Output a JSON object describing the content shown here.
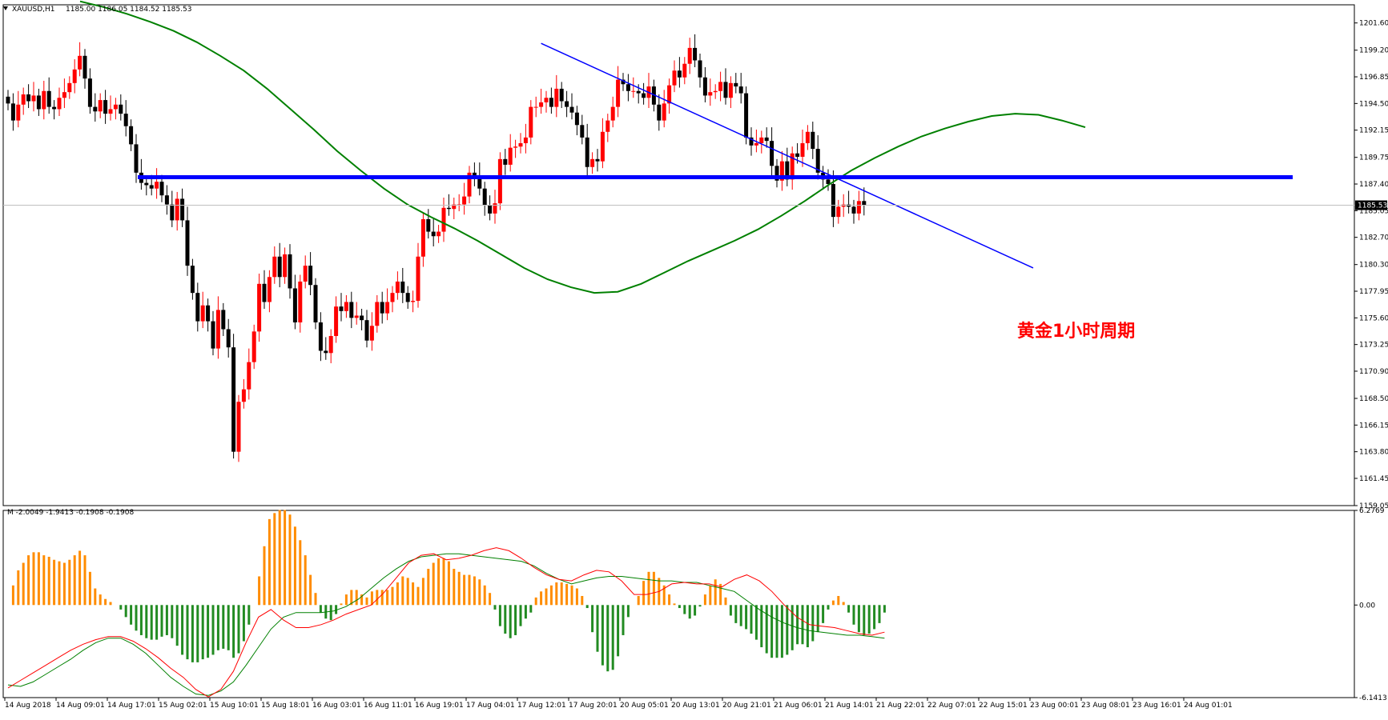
{
  "header": {
    "symbol": "XAUUSD,H1",
    "ohlc": "1185.00 1186.05 1184.52 1185.53"
  },
  "annotation": "黄金1小时周期",
  "colors": {
    "bull": "#ff0000",
    "bear": "#000000",
    "ma": "#008000",
    "support_line": "#0000ff",
    "trend_line": "#0000ff",
    "hist_pos": "#ff8c00",
    "hist_neg": "#228b22",
    "osc_fast": "#ff0000",
    "osc_slow": "#008000",
    "grid": "#c0c0c0"
  },
  "chart_data": [
    {
      "type": "candlestick",
      "title": "XAUUSD,H1",
      "ylim": [
        1159.05,
        1203.2
      ],
      "price_ticks": [
        "1201.60",
        "1199.20",
        "1196.85",
        "1194.50",
        "1192.15",
        "1189.75",
        "1187.40",
        "1185.05",
        "1182.70",
        "1180.30",
        "1177.95",
        "1175.60",
        "1173.25",
        "1170.90",
        "1168.50",
        "1166.15",
        "1163.80",
        "1161.45",
        "1159.05"
      ],
      "current_price": "1185.53",
      "x_labels": [
        "14 Aug 2018",
        "14 Aug 09:01",
        "14 Aug 17:01",
        "15 Aug 02:01",
        "15 Aug 10:01",
        "15 Aug 18:01",
        "16 Aug 03:01",
        "16 Aug 11:01",
        "16 Aug 19:01",
        "17 Aug 04:01",
        "17 Aug 12:01",
        "17 Aug 20:01",
        "20 Aug 05:01",
        "20 Aug 13:01",
        "20 Aug 21:01",
        "21 Aug 06:01",
        "21 Aug 14:01",
        "21 Aug 22:01",
        "22 Aug 07:01",
        "22 Aug 15:01",
        "23 Aug 00:01",
        "23 Aug 08:01",
        "23 Aug 16:01",
        "24 Aug 01:01"
      ],
      "close": [
        1194.5,
        1193.0,
        1194.4,
        1195.3,
        1194.7,
        1195.2,
        1194.0,
        1195.6,
        1194.2,
        1194.0,
        1195.0,
        1195.5,
        1196.3,
        1197.5,
        1198.7,
        1196.7,
        1194.2,
        1193.8,
        1194.8,
        1193.6,
        1194.0,
        1194.4,
        1193.6,
        1192.5,
        1190.9,
        1188.4,
        1187.5,
        1187.3,
        1187.0,
        1187.6,
        1186.4,
        1185.6,
        1184.2,
        1186.1,
        1184.2,
        1180.2,
        1177.8,
        1175.3,
        1176.7,
        1175.3,
        1172.9,
        1176.3,
        1174.6,
        1173.0,
        1163.8,
        1168.2,
        1169.3,
        1171.7,
        1174.4,
        1178.6,
        1177.0,
        1179.2,
        1181.0,
        1179.2,
        1181.2,
        1178.2,
        1175.2,
        1178.8,
        1180.2,
        1178.5,
        1175.2,
        1172.7,
        1172.5,
        1174.0,
        1176.6,
        1176.2,
        1177.0,
        1175.6,
        1175.8,
        1175.4,
        1173.6,
        1174.9,
        1177.0,
        1176.0,
        1177.0,
        1177.8,
        1178.8,
        1177.8,
        1177.0,
        1177.1,
        1181.0,
        1184.3,
        1183.2,
        1182.8,
        1183.2,
        1185.3,
        1185.2,
        1185.6,
        1185.6,
        1186.3,
        1188.4,
        1188.1,
        1187.0,
        1185.5,
        1184.8,
        1185.7,
        1189.6,
        1189.1,
        1190.6,
        1190.7,
        1191.0,
        1191.5,
        1194.2,
        1194.2,
        1194.6,
        1195.0,
        1194.2,
        1195.8,
        1194.7,
        1194.2,
        1193.7,
        1192.6,
        1191.5,
        1188.9,
        1189.6,
        1189.4,
        1192.0,
        1193.0,
        1194.2,
        1196.6,
        1196.2,
        1195.6,
        1195.6,
        1195.4,
        1195.0,
        1196.0,
        1194.4,
        1193.0,
        1194.5,
        1196.1,
        1197.4,
        1196.8,
        1198.0,
        1199.4,
        1198.3,
        1196.8,
        1195.2,
        1195.5,
        1195.6,
        1196.4,
        1195.0,
        1196.3,
        1196.0,
        1195.4,
        1191.5,
        1190.8,
        1191.0,
        1191.5,
        1191.2,
        1189.0,
        1187.7,
        1189.4,
        1187.8,
        1190.1,
        1189.8,
        1191.0,
        1192.0,
        1190.5,
        1188.4,
        1187.8,
        1187.4,
        1184.5,
        1185.4,
        1185.6,
        1185.4,
        1184.8,
        1185.9,
        1185.53
      ],
      "ma_period_line": [
        1203.5,
        1203.0,
        1202.4,
        1201.7,
        1200.9,
        1199.9,
        1198.7,
        1197.4,
        1195.8,
        1194.0,
        1192.2,
        1190.3,
        1188.6,
        1187.0,
        1185.6,
        1184.5,
        1183.5,
        1182.4,
        1181.2,
        1180.0,
        1179.0,
        1178.3,
        1177.8,
        1177.9,
        1178.6,
        1179.6,
        1180.6,
        1181.5,
        1182.4,
        1183.4,
        1184.6,
        1185.9,
        1187.3,
        1188.6,
        1189.7,
        1190.7,
        1191.6,
        1192.3,
        1192.9,
        1193.4,
        1193.6,
        1193.5,
        1193.0,
        1192.4
      ],
      "support_level": 1188.0,
      "trend_line": {
        "start": [
          104,
          1199.8
        ],
        "end": [
          200,
          1180.0
        ]
      }
    },
    {
      "type": "macd",
      "title": "M -2.0049 -1.9413 -0.1908 -0.1908",
      "ylim": [
        -6.1413,
        6.2769
      ],
      "ticks": [
        "6.2769",
        "0.00",
        "-6.1413"
      ],
      "histogram": [
        0.0,
        1.3,
        2.3,
        2.8,
        3.3,
        3.5,
        3.5,
        3.3,
        3.2,
        3.0,
        2.9,
        2.8,
        3.0,
        3.3,
        3.6,
        3.3,
        2.2,
        1.1,
        0.7,
        0.4,
        0.2,
        0.0,
        -0.3,
        -0.8,
        -1.3,
        -1.7,
        -2.0,
        -2.2,
        -2.3,
        -2.3,
        -2.1,
        -2.0,
        -2.2,
        -2.7,
        -3.3,
        -3.6,
        -3.8,
        -3.8,
        -3.6,
        -3.5,
        -3.3,
        -3.0,
        -2.9,
        -3.0,
        -3.5,
        -3.2,
        -2.4,
        -1.3,
        0.0,
        1.9,
        3.9,
        5.7,
        6.1,
        6.3,
        6.3,
        6.0,
        5.2,
        4.3,
        3.3,
        2.0,
        0.8,
        -0.5,
        -0.9,
        -1.0,
        -0.6,
        0.1,
        0.7,
        1.0,
        1.0,
        0.7,
        0.5,
        0.9,
        1.0,
        1.0,
        1.0,
        1.2,
        1.5,
        1.9,
        1.8,
        1.5,
        1.2,
        1.8,
        2.4,
        2.8,
        3.1,
        3.1,
        2.9,
        2.4,
        2.2,
        2.0,
        2.0,
        1.9,
        1.7,
        1.3,
        0.8,
        -0.3,
        -1.4,
        -1.9,
        -2.2,
        -2.0,
        -1.4,
        -0.9,
        -0.5,
        0.5,
        0.9,
        1.1,
        1.3,
        1.5,
        1.5,
        1.4,
        1.3,
        1.1,
        0.6,
        -0.2,
        -1.8,
        -3.1,
        -4.0,
        -4.4,
        -4.3,
        -3.4,
        -2.0,
        -0.8,
        0.0,
        0.6,
        1.6,
        2.2,
        2.2,
        1.8,
        1.3,
        0.7,
        0.1,
        -0.2,
        -0.6,
        -0.9,
        -0.7,
        -0.1,
        0.7,
        1.3,
        1.7,
        1.4,
        0.5,
        -0.7,
        -1.2,
        -1.4,
        -1.6,
        -1.9,
        -2.3,
        -2.8,
        -3.2,
        -3.5,
        -3.5,
        -3.5,
        -3.3,
        -3.0,
        -2.6,
        -2.6,
        -2.8,
        -2.4,
        -1.8,
        -1.2,
        -0.3,
        0.3,
        0.6,
        0.2,
        -0.5,
        -1.3,
        -1.8,
        -2.0,
        -1.9,
        -1.6,
        -1.2,
        -0.5
      ],
      "signal_fast": [
        -5.5,
        -5.0,
        -4.5,
        -4.0,
        -3.5,
        -3.0,
        -2.6,
        -2.3,
        -2.1,
        -2.1,
        -2.4,
        -2.9,
        -3.5,
        -4.2,
        -4.8,
        -5.6,
        -6.1,
        -5.6,
        -4.4,
        -2.5,
        -0.8,
        -0.3,
        -1.0,
        -1.5,
        -1.5,
        -1.3,
        -1.0,
        -0.6,
        -0.3,
        -0.0,
        0.8,
        1.8,
        2.8,
        3.3,
        3.4,
        3.0,
        3.1,
        3.3,
        3.6,
        3.8,
        3.6,
        3.1,
        2.5,
        2.0,
        1.7,
        1.6,
        2.0,
        2.3,
        2.2,
        1.6,
        0.7,
        0.7,
        0.9,
        1.4,
        1.5,
        1.4,
        1.4,
        1.2,
        1.7,
        2.0,
        1.6,
        0.9,
        0.0,
        -0.8,
        -1.3,
        -1.4,
        -1.5,
        -1.7,
        -1.9,
        -2.0,
        -1.8
      ],
      "signal_slow": [
        -5.3,
        -5.4,
        -5.1,
        -4.6,
        -4.1,
        -3.6,
        -3.0,
        -2.5,
        -2.2,
        -2.2,
        -2.6,
        -3.2,
        -4.0,
        -4.8,
        -5.4,
        -5.9,
        -6.0,
        -5.7,
        -5.1,
        -4.0,
        -2.8,
        -1.6,
        -0.8,
        -0.5,
        -0.5,
        -0.5,
        -0.4,
        -0.1,
        0.4,
        1.1,
        1.8,
        2.4,
        2.9,
        3.2,
        3.3,
        3.4,
        3.4,
        3.3,
        3.2,
        3.1,
        3.0,
        2.9,
        2.6,
        2.1,
        1.7,
        1.4,
        1.6,
        1.8,
        1.9,
        1.9,
        1.8,
        1.7,
        1.6,
        1.6,
        1.5,
        1.5,
        1.3,
        1.1,
        0.9,
        0.3,
        -0.3,
        -0.8,
        -1.2,
        -1.5,
        -1.7,
        -1.8,
        -1.9,
        -2.0,
        -2.0,
        -2.1,
        -2.2
      ]
    }
  ]
}
